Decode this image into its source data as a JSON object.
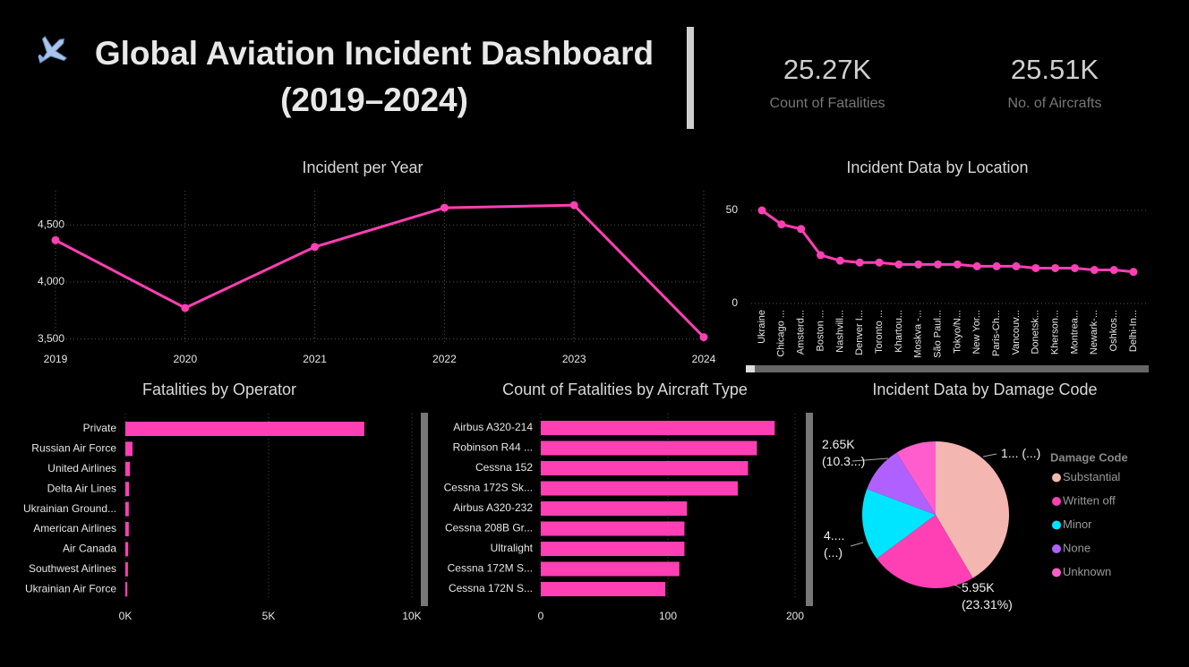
{
  "header": {
    "title": "Global Aviation Incident Dashboard (2019–2024)"
  },
  "kpis": [
    {
      "value": "25.27K",
      "label": "Count of Fatalities"
    },
    {
      "value": "25.51K",
      "label": "No. of Aircrafts"
    }
  ],
  "chart_data": [
    {
      "type": "line",
      "title": "Incident per Year",
      "categories": [
        "2019",
        "2020",
        "2021",
        "2022",
        "2023",
        "2024"
      ],
      "values": [
        4366,
        3772,
        4307,
        4650,
        4673,
        3516
      ],
      "color": "#ff3fb4",
      "ylim": [
        3450,
        4800
      ],
      "yticks": [
        {
          "value": 3500,
          "label": "3,500"
        },
        {
          "value": 4000,
          "label": "4,000"
        },
        {
          "value": 4500,
          "label": "4,500"
        }
      ],
      "grid": true
    },
    {
      "type": "line",
      "title": "Incident Data by Location",
      "categories": [
        "Ukraine",
        "Chicago ...",
        "Amsterd...",
        "Boston ...",
        "Nashvill...",
        "Denver I...",
        "Toronto ...",
        "Khartou...",
        "Moskva -...",
        "São Paul...",
        "Tokyo/N...",
        "New Yor...",
        "Paris-Ch...",
        "Vancouv...",
        "Donetsk...",
        "Kherson...",
        "Montrea...",
        "Newark-...",
        "Oshkos...",
        "Delhi-In..."
      ],
      "values": [
        50,
        42.5,
        40,
        26,
        23,
        22,
        22,
        21,
        21,
        21,
        21,
        20,
        20,
        20,
        19,
        19,
        19,
        18,
        18,
        17
      ],
      "color": "#ff3fb4",
      "ylim": [
        0,
        55
      ],
      "yticks": [
        0,
        50
      ],
      "grid": true
    },
    {
      "type": "bar",
      "horizontal": true,
      "title": "Fatalities by Operator",
      "categories": [
        "Private",
        "Russian Air Force",
        "United Airlines",
        "Delta Air Lines",
        "Ukrainian Ground...",
        "American Airlines",
        "Air Canada",
        "Southwest Airlines",
        "Ukrainian Air Force"
      ],
      "values": [
        8340,
        250,
        160,
        130,
        120,
        120,
        100,
        90,
        70
      ],
      "color": "#ff3fb4",
      "xlim": [
        0,
        10000
      ],
      "xticks": [
        {
          "value": 0,
          "label": "0K"
        },
        {
          "value": 5000,
          "label": "5K"
        },
        {
          "value": 10000,
          "label": "10K"
        }
      ],
      "grid": true
    },
    {
      "type": "bar",
      "horizontal": true,
      "title": "Count of Fatalities by Aircraft Type",
      "categories": [
        "Airbus A320-214",
        "Robinson R44 ...",
        "Cessna 152",
        "Cessna 172S Sk...",
        "Airbus A320-232",
        "Cessna 208B Gr...",
        "Ultralight",
        "Cessna 172M S...",
        "Cessna 172N S..."
      ],
      "values": [
        184,
        170,
        163,
        155,
        115,
        113,
        113,
        109,
        98
      ],
      "color": "#ff3fb4",
      "xlim": [
        0,
        200
      ],
      "xticks": [
        0,
        100,
        200
      ],
      "grid": true
    },
    {
      "type": "pie",
      "title": "Incident Data by Damage Code",
      "legend_title": "Damage Code",
      "categories": [
        "Substantial",
        "Written off",
        "Minor",
        "None",
        "Unknown"
      ],
      "values": [
        10600,
        5950,
        4050,
        2650,
        2280
      ],
      "value_labels": [
        "1... (...)",
        "5.95K\n(23.31%)",
        "4....\n(...)",
        "2.65K\n(10.3...)",
        null
      ],
      "colors": [
        "#f4b6b0",
        "#ff3fb4",
        "#00e5ff",
        "#b060ff",
        "#ff5ccd"
      ]
    }
  ]
}
